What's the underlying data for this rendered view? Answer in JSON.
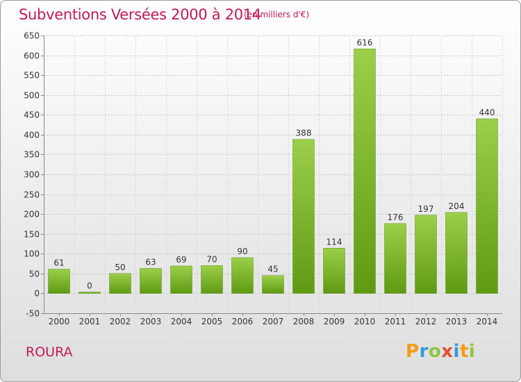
{
  "header": {
    "title": "Subventions Versées 2000 à 2014",
    "unit": "(en milliers d'€)"
  },
  "footer": {
    "commune": "ROURA",
    "logo_letters": [
      {
        "ch": "P",
        "color": "#f39c12"
      },
      {
        "ch": "r",
        "color": "#3498db"
      },
      {
        "ch": "o",
        "color": "#8dc63f"
      },
      {
        "ch": "x",
        "color": "#e74c3c"
      },
      {
        "ch": "i",
        "color": "#3498db"
      },
      {
        "ch": "t",
        "color": "#f39c12"
      },
      {
        "ch": "i",
        "color": "#8dc63f"
      }
    ]
  },
  "chart_data": {
    "type": "bar",
    "title": "Subventions Versées 2000 à 2014",
    "subtitle": "(en milliers d'€)",
    "categories": [
      "2000",
      "2001",
      "2002",
      "2003",
      "2004",
      "2005",
      "2006",
      "2007",
      "2008",
      "2009",
      "2010",
      "2011",
      "2012",
      "2013",
      "2014"
    ],
    "values": [
      61,
      0,
      50,
      63,
      69,
      70,
      90,
      45,
      388,
      114,
      616,
      176,
      197,
      204,
      440
    ],
    "ylim": [
      -50,
      650
    ],
    "yticks": [
      -50,
      0,
      50,
      100,
      150,
      200,
      250,
      300,
      350,
      400,
      450,
      500,
      550,
      600,
      650
    ],
    "grid": true,
    "bar_color_top": "#9ccf4a",
    "bar_color_bottom": "#5f9a12"
  }
}
